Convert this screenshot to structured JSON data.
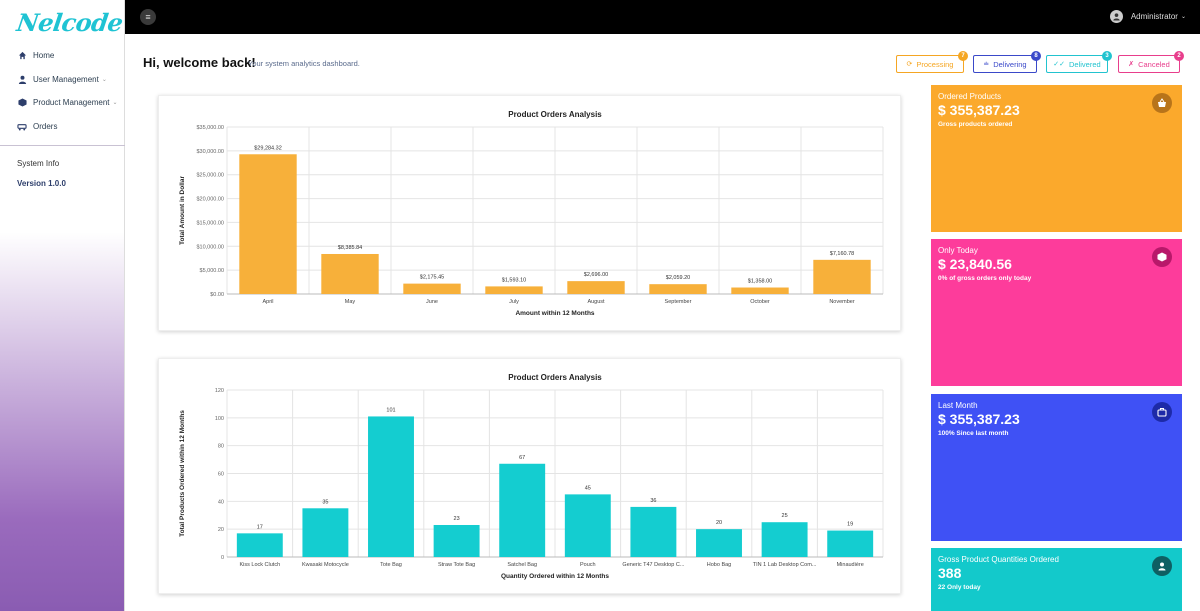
{
  "app": {
    "logo_text": "Nelcode",
    "user_name": "Administrator"
  },
  "sidebar": {
    "items": [
      {
        "label": "Home",
        "icon": "home-icon"
      },
      {
        "label": "User Management",
        "icon": "user-icon",
        "has_submenu": true
      },
      {
        "label": "Product Management",
        "icon": "box-icon",
        "has_submenu": true
      },
      {
        "label": "Orders",
        "icon": "orders-icon"
      }
    ],
    "system_info": "System Info",
    "version": "Version 1.0.0"
  },
  "header": {
    "welcome": "Hi, welcome back!",
    "subtitle": "Your system analytics dashboard."
  },
  "status_buttons": [
    {
      "label": "Processing",
      "count": "7",
      "color": "#f5a623"
    },
    {
      "label": "Delivering",
      "count": "8",
      "color": "#3a49c9"
    },
    {
      "label": "Delivered",
      "count": "3",
      "color": "#22c3cf"
    },
    {
      "label": "Canceled",
      "count": "2",
      "color": "#e83e8c"
    }
  ],
  "tiles": [
    {
      "label": "Ordered Products",
      "value": "$ 355,387.23",
      "sub": "Gross products ordered",
      "color": "#fba92c",
      "icon_bg": "#b8741a",
      "icon": "basket-icon"
    },
    {
      "label": "Only Today",
      "value": "$ 23,840.56",
      "sub": "0% of gross orders only today",
      "color": "#fd3c9b",
      "icon_bg": "#b8186a",
      "icon": "cube-icon"
    },
    {
      "label": "Last Month",
      "value": "$ 355,387.23",
      "sub": "100% Since last month",
      "color": "#3f51f5",
      "icon_bg": "#1d2aa8",
      "icon": "briefcase-icon"
    },
    {
      "label": "Gross Product Quantities Ordered",
      "value": "388",
      "sub": "22 Only today",
      "color": "#13c9cb",
      "icon_bg": "#0e5f63",
      "icon": "user-circle-icon"
    }
  ],
  "chart_data": [
    {
      "type": "bar",
      "title": "Product Orders Analysis",
      "xlabel": "Amount within 12 Months",
      "ylabel": "Total Amount in Dollar",
      "categories": [
        "April",
        "May",
        "June",
        "July",
        "August",
        "September",
        "October",
        "November"
      ],
      "values": [
        29284.32,
        8385.84,
        2175.45,
        1593.1,
        2696.0,
        2059.2,
        1358.0,
        7160.78
      ],
      "data_labels": [
        "$29,284.32",
        "$8,385.84",
        "$2,175.45",
        "$1,593.10",
        "$2,696.00",
        "$2,059.20",
        "$1,358.00",
        "$7,160.78"
      ],
      "ylim": [
        0,
        35000
      ],
      "yticks": [
        "$0.00",
        "$5,000.00",
        "$10,000.00",
        "$15,000.00",
        "$20,000.00",
        "$25,000.00",
        "$30,000.00",
        "$35,000.00"
      ],
      "grid": true,
      "color": "#f7b03a"
    },
    {
      "type": "bar",
      "title": "Product Orders Analysis",
      "xlabel": "Quantity Ordered within 12 Months",
      "ylabel": "Total Products Ordered within 12 Months",
      "categories": [
        "Kiss Lock Clutch",
        "Kwasaki Motocycle",
        "Tote Bag",
        "Straw Tote Bag",
        "Satchel Bag",
        "Pouch",
        "Generic T47 Desktop C...",
        "Hobo Bag",
        "TIN 1 Lab Desktop Com...",
        "Minaudière"
      ],
      "values": [
        17,
        35,
        101,
        23,
        67,
        45,
        36,
        20,
        25,
        19
      ],
      "data_labels": [
        "17",
        "35",
        "101",
        "23",
        "67",
        "45",
        "36",
        "20",
        "25",
        "19"
      ],
      "ylim": [
        0,
        120
      ],
      "yticks": [
        "0",
        "20",
        "40",
        "60",
        "80",
        "100",
        "120"
      ],
      "grid": true,
      "color": "#14cdd0"
    }
  ]
}
